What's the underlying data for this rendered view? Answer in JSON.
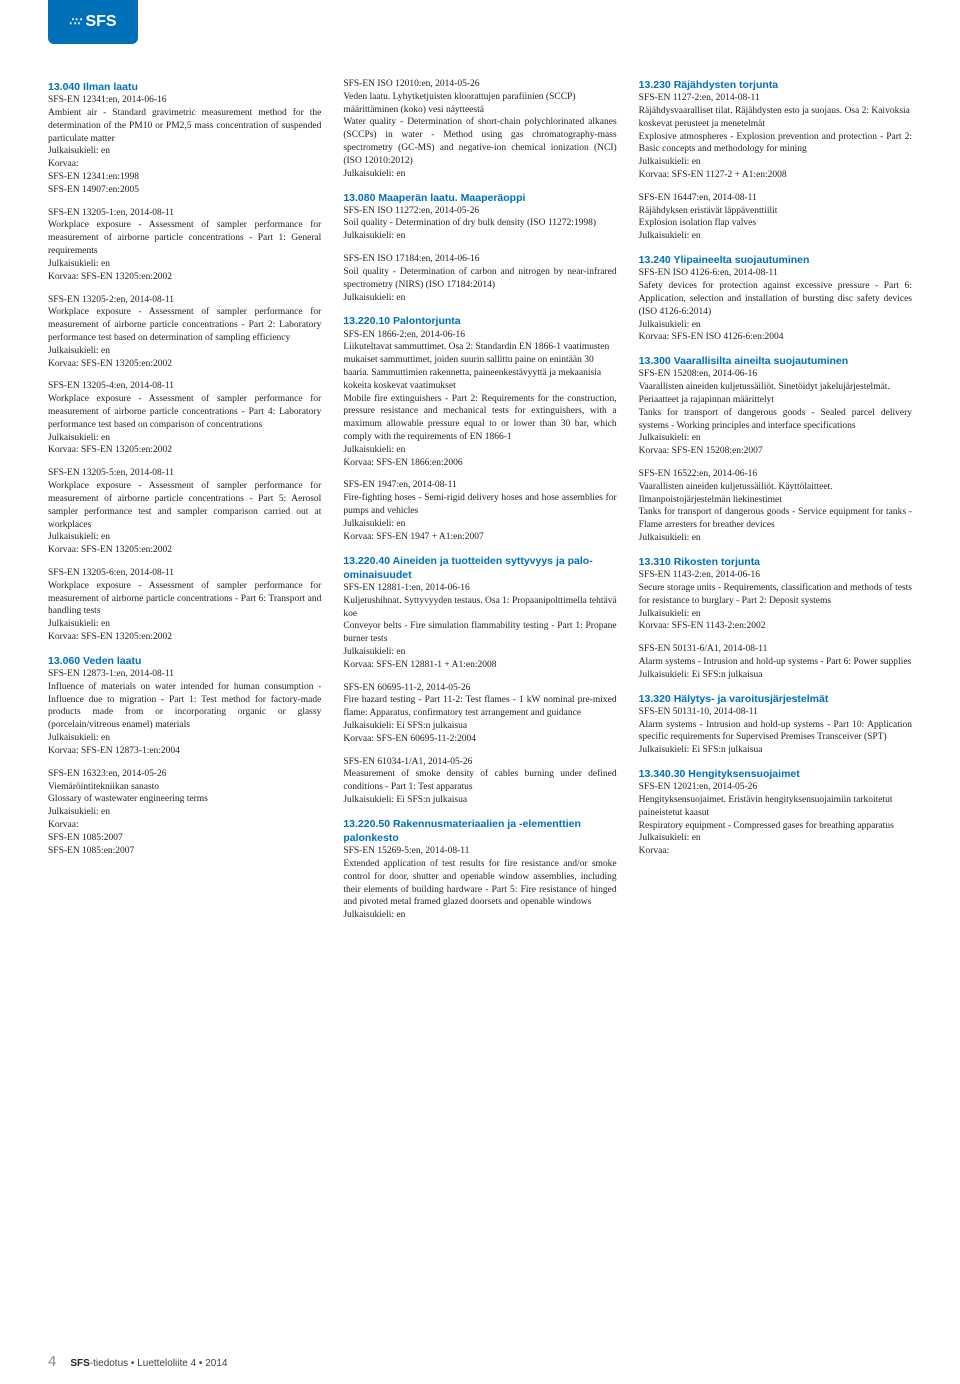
{
  "logo": {
    "text": "SFS"
  },
  "footer": {
    "page_number": "4",
    "brand": "SFS",
    "text": "-tiedotus • Luetteloliite 4 • 2014"
  },
  "sections": [
    {
      "heading": "13.040 Ilman laatu",
      "entries": [
        {
          "std": "SFS-EN 12341:en, 2014-06-16",
          "body": "Ambient air - Standard gravimetric measurement method for the determination of the PM10 or PM2,5 mass concentration of suspended particulate matter",
          "lang": "Julkaisukieli: en",
          "korvaa": "Korvaa:\nSFS-EN 12341:en:1998\nSFS-EN 14907:en:2005"
        },
        {
          "std": "SFS-EN 13205-1:en, 2014-08-11",
          "body": "Workplace exposure - Assessment of sampler performance for measurement of airborne particle concentrations - Part 1: General requirements",
          "lang": "Julkaisukieli: en",
          "korvaa": "Korvaa: SFS-EN 13205:en:2002"
        },
        {
          "std": "SFS-EN 13205-2:en, 2014-08-11",
          "body": "Workplace exposure - Assessment of sampler performance for measurement of airborne particle concentrations - Part 2: Laboratory performance test based on determination of sampling efficiency",
          "lang": "Julkaisukieli: en",
          "korvaa": "Korvaa: SFS-EN 13205:en:2002"
        },
        {
          "std": "SFS-EN 13205-4:en, 2014-08-11",
          "body": "Workplace exposure - Assessment of sampler performance for measurement of airborne particle concentrations - Part 4: Laboratory performance test based on comparison of concentrations",
          "lang": "Julkaisukieli: en",
          "korvaa": "Korvaa: SFS-EN 13205:en:2002"
        },
        {
          "std": "SFS-EN 13205-5:en, 2014-08-11",
          "body": "Workplace exposure - Assessment of sampler performance for measurement of airborne particle concentrations - Part 5: Aerosol sampler performance test and sampler comparison carried out at workplaces",
          "lang": "Julkaisukieli: en",
          "korvaa": "Korvaa: SFS-EN 13205:en:2002"
        },
        {
          "std": "SFS-EN 13205-6:en, 2014-08-11",
          "body": "Workplace exposure - Assessment of sampler performance for measurement of airborne particle concentrations - Part 6: Transport and handling tests",
          "lang": "Julkaisukieli: en",
          "korvaa": "Korvaa: SFS-EN 13205:en:2002"
        }
      ]
    },
    {
      "heading": "13.060 Veden laatu",
      "entries": [
        {
          "std": "SFS-EN 12873-1:en, 2014-08-11",
          "body": "Influence of materials on water intended for human consumption - Influence due to migration - Part 1: Test method for factory-made products made from or incorporating organic or glassy (porcelain/vitreous enamel) materials",
          "lang": "Julkaisukieli: en",
          "korvaa": "Korvaa: SFS-EN 12873-1:en:2004"
        },
        {
          "std": "SFS-EN 16323:en, 2014-05-26",
          "title_fi": "Viemäröintitekniikan sanasto",
          "body": "Glossary of wastewater engineering terms",
          "lang": "Julkaisukieli: en",
          "korvaa": "Korvaa:\nSFS-EN 1085:2007\nSFS-EN 1085:en:2007"
        },
        {
          "std": "SFS-EN ISO 12010:en, 2014-05-26",
          "title_fi": "Veden laatu. Lyhytketjuisten kloorattujen parafiinien (SCCP) määrittäminen (koko) vesi näytteestä",
          "body": "Water quality - Determination of short-chain polychlorinated alkanes (SCCPs) in water - Method using gas chromatography-mass spectrometry (GC-MS) and negative-ion chemical ionization (NCI) (ISO 12010:2012)",
          "lang": "Julkaisukieli: en"
        }
      ]
    },
    {
      "heading": "13.080 Maaperän laatu. Maaperäoppi",
      "entries": [
        {
          "std": "SFS-EN ISO 11272:en, 2014-05-26",
          "body": "Soil quality - Determination of dry bulk density (ISO 11272:1998)",
          "lang": "Julkaisukieli: en"
        },
        {
          "std": "SFS-EN ISO 17184:en, 2014-06-16",
          "body": "Soil quality - Determination of carbon and nitrogen by near-infrared spectrometry (NIRS) (ISO 17184:2014)",
          "lang": "Julkaisukieli: en"
        }
      ]
    },
    {
      "heading": "13.220.10 Palontorjunta",
      "entries": [
        {
          "std": "SFS-EN 1866-2:en, 2014-06-16",
          "title_fi": "Liikuteltavat sammuttimet. Osa 2: Standardin EN 1866-1 vaatimusten mukaiset sammuttimet, joiden suurin sallittu paine on enintään 30 baaria. Sammuttimien rakennetta, paineenkestävyyttä ja mekaanisia kokeita koskevat vaatimukset",
          "body": "Mobile fire extinguishers - Part 2: Requirements for the construction, pressure resistance and mechanical tests for extinguishers, with a maximum allowable pressure equal to or lower than 30 bar, which comply with the requirements of EN 1866-1",
          "lang": "Julkaisukieli: en",
          "korvaa": "Korvaa: SFS-EN 1866:en:2006"
        },
        {
          "std": "SFS-EN 1947:en, 2014-08-11",
          "body": "Fire-fighting hoses - Semi-rigid delivery hoses and hose assemblies for pumps and vehicles",
          "lang": "Julkaisukieli: en",
          "korvaa": "Korvaa: SFS-EN 1947 + A1:en:2007"
        }
      ]
    },
    {
      "heading": "13.220.40 Aineiden ja tuotteiden syttyvyys ja palo-ominaisuudet",
      "entries": [
        {
          "std": "SFS-EN 12881-1:en, 2014-06-16",
          "title_fi": "Kuljetushihnat. Syttyvyyden testaus. Osa 1: Propaanipolttimella tehtävä koe",
          "body": "Conveyor belts - Fire simulation flammability testing - Part 1: Propane burner tests",
          "lang": "Julkaisukieli: en",
          "korvaa": "Korvaa: SFS-EN 12881-1 + A1:en:2008"
        },
        {
          "std": "SFS-EN 60695-11-2, 2014-05-26",
          "body": "Fire hazard testing - Part 11-2: Test flames - 1 kW nominal pre-mixed flame: Apparatus, confirmatory test arrangement and guidance",
          "lang": "Julkaisukieli: Ei SFS:n julkaisua",
          "korvaa": "Korvaa: SFS-EN 60695-11-2:2004"
        },
        {
          "std": "SFS-EN 61034-1/A1, 2014-05-26",
          "body": "Measurement of smoke density of cables burning under defined conditions - Part 1: Test apparatus",
          "lang": "Julkaisukieli: Ei SFS:n julkaisua"
        }
      ]
    },
    {
      "heading": "13.220.50 Rakennusmateriaalien ja -elementtien palonkesto",
      "entries": [
        {
          "std": "SFS-EN 15269-5:en, 2014-08-11",
          "body": "Extended application of test results for fire resistance and/or smoke control for door, shutter and openable window assemblies, including their elements of building hardware - Part 5: Fire resistance of hinged and pivoted metal framed glazed doorsets and openable windows",
          "lang": "Julkaisukieli: en"
        }
      ]
    },
    {
      "heading": "13.230 Räjähdysten torjunta",
      "entries": [
        {
          "std": "SFS-EN 1127-2:en, 2014-08-11",
          "title_fi": "Räjähdysvaaralliset tilat. Räjähdysten esto ja suojaus. Osa 2: Kaivoksia koskevat perusteet ja menetelmät",
          "body": "Explosive atmospheres - Explosion prevention and protection - Part 2: Basic concepts and methodology for mining",
          "lang": "Julkaisukieli: en",
          "korvaa": "Korvaa: SFS-EN 1127-2 + A1:en:2008"
        },
        {
          "std": "SFS-EN 16447:en, 2014-08-11",
          "title_fi": "Räjähdyksen eristävät läppäventtiilit",
          "body": "Explosion isolation flap valves",
          "lang": "Julkaisukieli: en"
        }
      ]
    },
    {
      "heading": "13.240 Ylipaineelta suojautuminen",
      "entries": [
        {
          "std": "SFS-EN ISO 4126-6:en, 2014-08-11",
          "body": "Safety devices for protection against excessive pressure - Part 6: Application, selection and installation of bursting disc safety devices (ISO 4126-6:2014)",
          "lang": "Julkaisukieli: en",
          "korvaa": "Korvaa: SFS-EN ISO 4126-6:en:2004"
        }
      ]
    },
    {
      "heading": "13.300 Vaarallisilta aineilta suojautuminen",
      "entries": [
        {
          "std": "SFS-EN 15208:en, 2014-06-16",
          "title_fi": "Vaarallisten aineiden kuljetussäiliöt. Sinetöidyt jakelujärjestelmät. Periaatteet ja rajapinnan määrittelyt",
          "body": "Tanks for transport of dangerous goods - Sealed parcel delivery systems - Working principles and interface specifications",
          "lang": "Julkaisukieli: en",
          "korvaa": "Korvaa: SFS-EN 15208:en:2007"
        },
        {
          "std": "SFS-EN 16522:en, 2014-06-16",
          "title_fi": "Vaarallisten aineiden kuljetussäiliöt. Käyttölaitteet. Ilmanpoistojärjestelmän liekinestimet",
          "body": "Tanks for transport of dangerous goods - Service equipment for tanks - Flame arresters for breather devices",
          "lang": "Julkaisukieli: en"
        }
      ]
    },
    {
      "heading": "13.310 Rikosten torjunta",
      "entries": [
        {
          "std": "SFS-EN 1143-2:en, 2014-06-16",
          "body": "Secure storage units - Requirements, classification and methods of tests for resistance to burglary - Part 2: Deposit systems",
          "lang": "Julkaisukieli: en",
          "korvaa": "Korvaa: SFS-EN 1143-2:en:2002"
        },
        {
          "std": "SFS-EN 50131-6/A1, 2014-08-11",
          "body": "Alarm systems - Intrusion and hold-up systems - Part 6: Power supplies",
          "lang": "Julkaisukieli: Ei SFS:n julkaisua"
        }
      ]
    },
    {
      "heading": "13.320 Hälytys- ja varoitusjärjestelmät",
      "entries": [
        {
          "std": "SFS-EN 50131-10, 2014-08-11",
          "body": "Alarm systems - Intrusion and hold-up systems - Part 10: Application specific requirements for Supervised Premises Transceiver (SPT)",
          "lang": "Julkaisukieli: Ei SFS:n julkaisua"
        }
      ]
    },
    {
      "heading": "13.340.30 Hengityksensuojaimet",
      "entries": [
        {
          "std": "SFS-EN 12021:en, 2014-05-26",
          "title_fi": "Hengityksensuojaimet. Eristävin hengityksensuojaimiin tarkoitetut paineistetut kaasut",
          "body": "Respiratory equipment - Compressed gases for breathing apparatus",
          "lang": "Julkaisukieli: en",
          "korvaa": "Korvaa:"
        }
      ]
    }
  ]
}
